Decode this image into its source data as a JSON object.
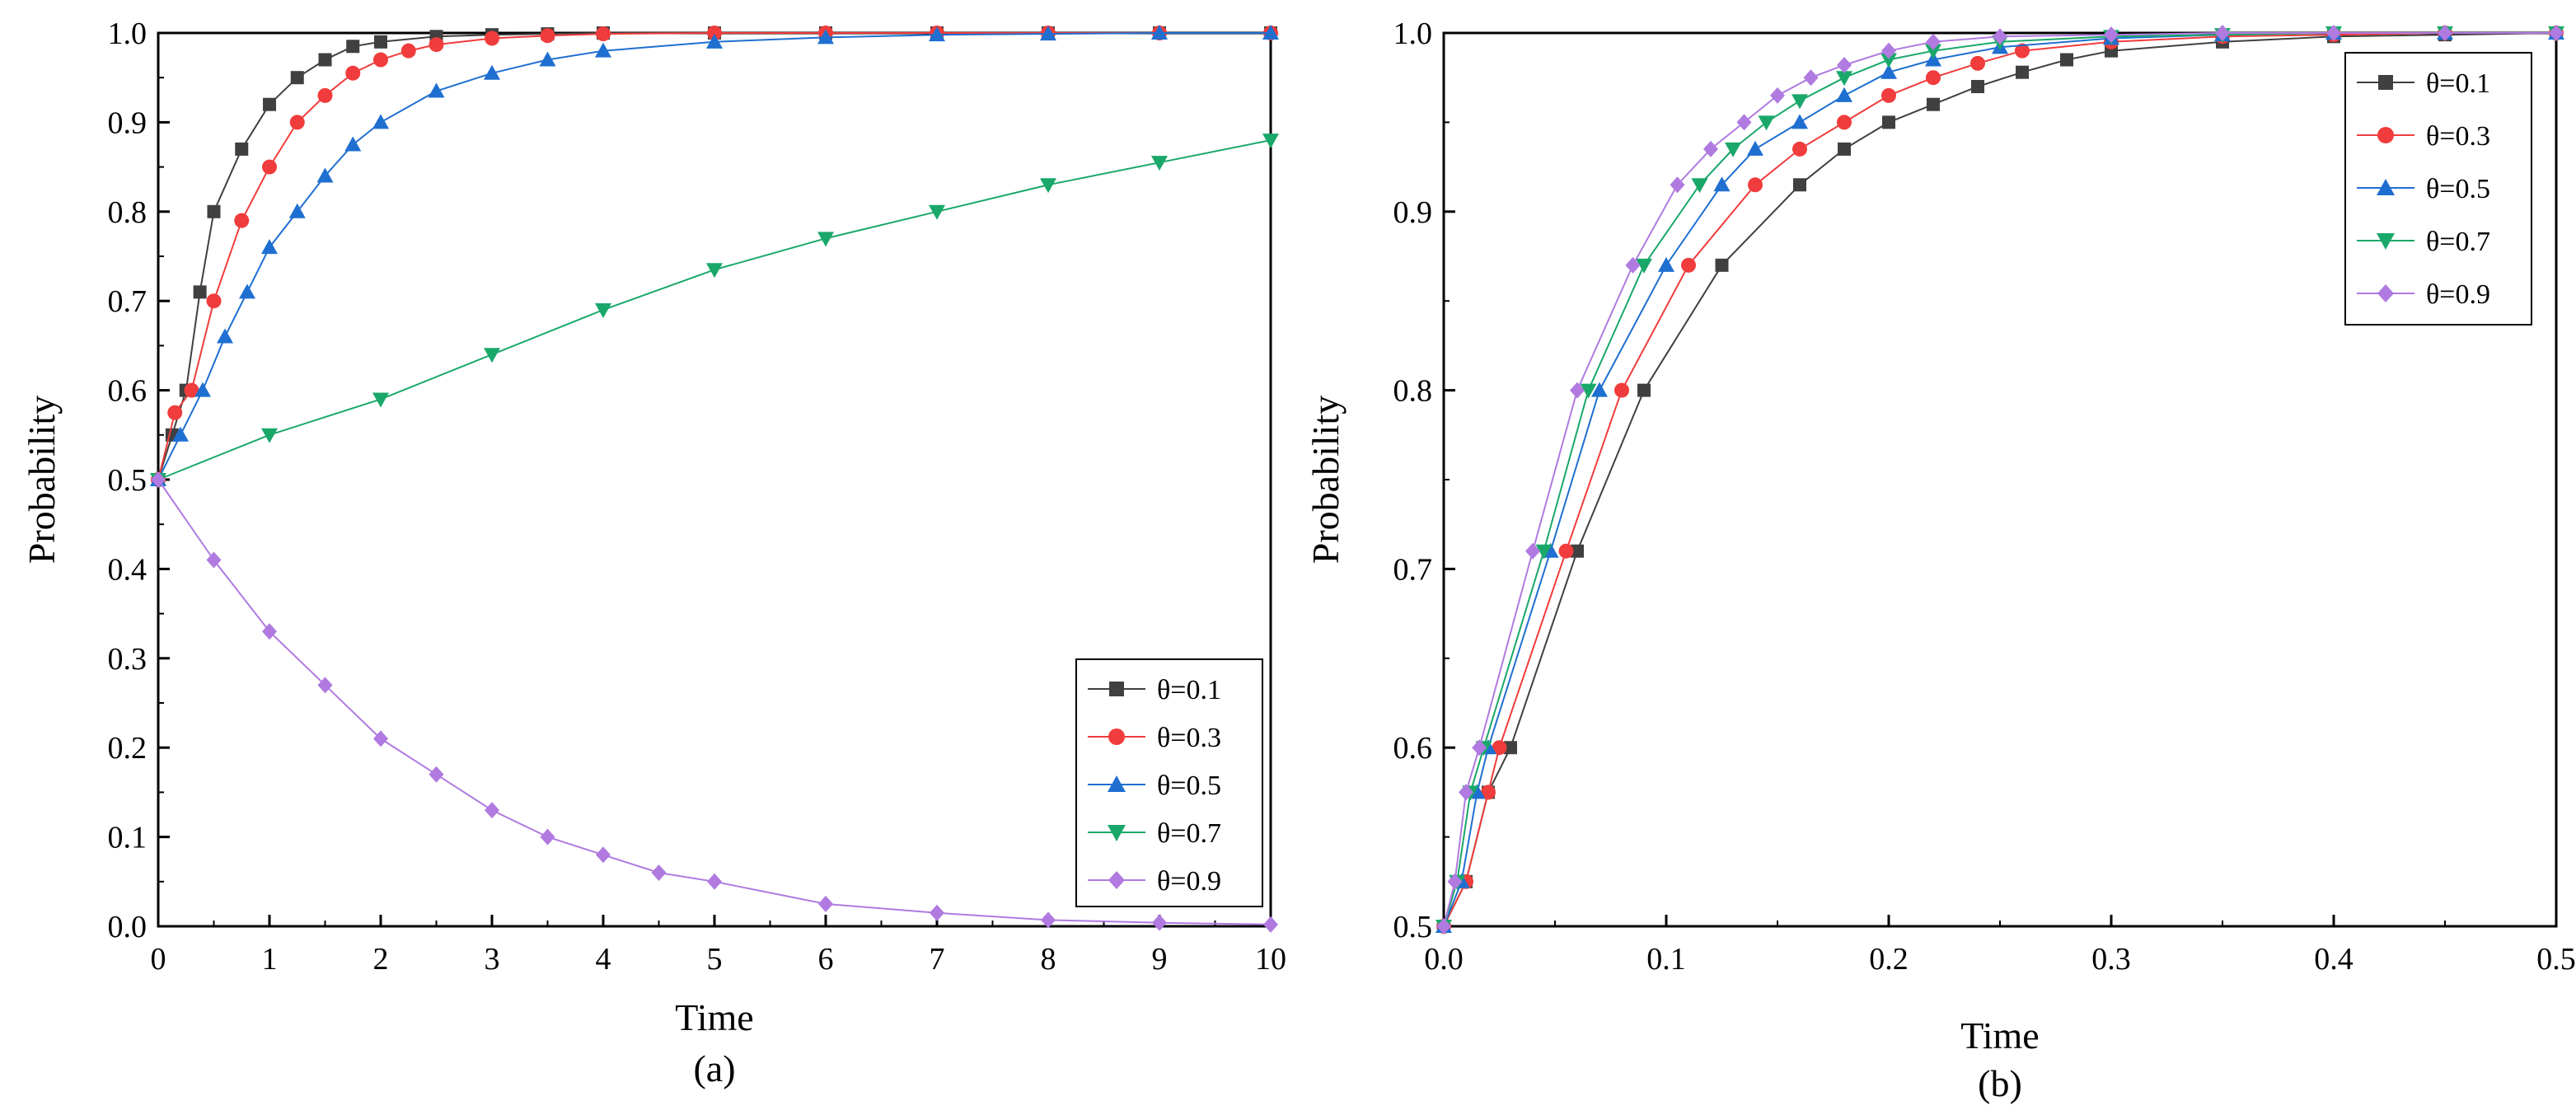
{
  "chart_data": [
    {
      "type": "line",
      "panel_label": "(a)",
      "xlabel": "Time",
      "ylabel": "Probability",
      "xlim": [
        0,
        10
      ],
      "ylim": [
        0,
        1.0
      ],
      "x_ticks": [
        0,
        1,
        2,
        3,
        4,
        5,
        6,
        7,
        8,
        9,
        10
      ],
      "x_tick_labels": [
        "0",
        "1",
        "2",
        "3",
        "4",
        "5",
        "6",
        "7",
        "8",
        "9",
        "10"
      ],
      "y_ticks": [
        0,
        0.1,
        0.2,
        0.3,
        0.4,
        0.5,
        0.6,
        0.7,
        0.8,
        0.9,
        1.0
      ],
      "y_tick_labels": [
        "0.0",
        "0.1",
        "0.2",
        "0.3",
        "0.4",
        "0.5",
        "0.6",
        "0.7",
        "0.8",
        "0.9",
        "1.0"
      ],
      "legend_position": "bottom-right",
      "series": [
        {
          "name": "θ=0.1",
          "color": "#404040",
          "marker": "square",
          "x": [
            0,
            0.125,
            0.25,
            0.375,
            0.5,
            0.75,
            1.0,
            1.25,
            1.5,
            1.75,
            2,
            2.5,
            3,
            3.5,
            4,
            5,
            6,
            7,
            8,
            9,
            10
          ],
          "y": [
            0.5,
            0.55,
            0.6,
            0.71,
            0.8,
            0.87,
            0.92,
            0.95,
            0.97,
            0.985,
            0.99,
            0.996,
            0.998,
            0.999,
            1.0,
            1.0,
            1.0,
            1.0,
            1.0,
            1.0,
            1.0
          ]
        },
        {
          "name": "θ=0.3",
          "color": "#f03c3c",
          "marker": "circle",
          "x": [
            0,
            0.15,
            0.3,
            0.5,
            0.75,
            1.0,
            1.25,
            1.5,
            1.75,
            2,
            2.25,
            2.5,
            3,
            3.5,
            4,
            5,
            6,
            7,
            8,
            9,
            10
          ],
          "y": [
            0.5,
            0.575,
            0.6,
            0.7,
            0.79,
            0.85,
            0.9,
            0.93,
            0.955,
            0.97,
            0.98,
            0.987,
            0.994,
            0.997,
            0.999,
            1.0,
            1.0,
            1.0,
            1.0,
            1.0,
            1.0
          ]
        },
        {
          "name": "θ=0.5",
          "color": "#1f6fd1",
          "marker": "triangle-up",
          "x": [
            0,
            0.2,
            0.4,
            0.6,
            0.8,
            1.0,
            1.25,
            1.5,
            1.75,
            2,
            2.5,
            3,
            3.5,
            4,
            5,
            6,
            7,
            8,
            9,
            10
          ],
          "y": [
            0.5,
            0.55,
            0.6,
            0.66,
            0.71,
            0.76,
            0.8,
            0.84,
            0.875,
            0.9,
            0.935,
            0.955,
            0.97,
            0.98,
            0.99,
            0.995,
            0.998,
            0.999,
            1.0,
            1.0
          ]
        },
        {
          "name": "θ=0.7",
          "color": "#1aa86a",
          "marker": "triangle-down",
          "x": [
            0,
            1,
            2,
            3,
            4,
            5,
            6,
            7,
            8,
            9,
            10
          ],
          "y": [
            0.5,
            0.55,
            0.59,
            0.64,
            0.69,
            0.735,
            0.77,
            0.8,
            0.83,
            0.855,
            0.88
          ]
        },
        {
          "name": "θ=0.9",
          "color": "#b07ae0",
          "marker": "diamond",
          "x": [
            0,
            0.5,
            1,
            1.5,
            2,
            2.5,
            3,
            3.5,
            4,
            4.5,
            5,
            6,
            7,
            8,
            9,
            10
          ],
          "y": [
            0.5,
            0.41,
            0.33,
            0.27,
            0.21,
            0.17,
            0.13,
            0.1,
            0.08,
            0.06,
            0.05,
            0.025,
            0.015,
            0.007,
            0.004,
            0.002
          ]
        }
      ]
    },
    {
      "type": "line",
      "panel_label": "(b)",
      "xlabel": "Time",
      "ylabel": "Probability",
      "xlim": [
        0,
        0.5
      ],
      "ylim": [
        0.5,
        1.0
      ],
      "x_ticks": [
        0,
        0.1,
        0.2,
        0.3,
        0.4,
        0.5
      ],
      "x_tick_labels": [
        "0.0",
        "0.1",
        "0.2",
        "0.3",
        "0.4",
        "0.5"
      ],
      "y_ticks": [
        0.5,
        0.6,
        0.7,
        0.8,
        0.9,
        1.0
      ],
      "y_tick_labels": [
        "0.5",
        "0.6",
        "0.7",
        "0.8",
        "0.9",
        "1.0"
      ],
      "legend_position": "top-right",
      "series": [
        {
          "name": "θ=0.1",
          "color": "#404040",
          "marker": "square",
          "x": [
            0,
            0.01,
            0.02,
            0.03,
            0.06,
            0.09,
            0.125,
            0.16,
            0.18,
            0.2,
            0.22,
            0.24,
            0.26,
            0.28,
            0.3,
            0.35,
            0.4,
            0.45,
            0.5
          ],
          "y": [
            0.5,
            0.525,
            0.575,
            0.6,
            0.71,
            0.8,
            0.87,
            0.915,
            0.935,
            0.95,
            0.96,
            0.97,
            0.978,
            0.985,
            0.99,
            0.995,
            0.998,
            0.999,
            1.0
          ]
        },
        {
          "name": "θ=0.3",
          "color": "#f03c3c",
          "marker": "circle",
          "x": [
            0,
            0.01,
            0.02,
            0.025,
            0.055,
            0.08,
            0.11,
            0.14,
            0.16,
            0.18,
            0.2,
            0.22,
            0.24,
            0.26,
            0.3,
            0.35,
            0.4,
            0.45,
            0.5
          ],
          "y": [
            0.5,
            0.525,
            0.575,
            0.6,
            0.71,
            0.8,
            0.87,
            0.915,
            0.935,
            0.95,
            0.965,
            0.975,
            0.983,
            0.99,
            0.995,
            0.998,
            0.999,
            1.0,
            1.0
          ]
        },
        {
          "name": "θ=0.5",
          "color": "#1f6fd1",
          "marker": "triangle-up",
          "x": [
            0,
            0.008,
            0.015,
            0.02,
            0.048,
            0.07,
            0.1,
            0.125,
            0.14,
            0.16,
            0.18,
            0.2,
            0.22,
            0.25,
            0.3,
            0.35,
            0.4,
            0.45,
            0.5
          ],
          "y": [
            0.5,
            0.525,
            0.575,
            0.6,
            0.71,
            0.8,
            0.87,
            0.915,
            0.935,
            0.95,
            0.965,
            0.978,
            0.985,
            0.992,
            0.997,
            0.999,
            1.0,
            1.0,
            1.0
          ]
        },
        {
          "name": "θ=0.7",
          "color": "#1aa86a",
          "marker": "triangle-down",
          "x": [
            0,
            0.006,
            0.012,
            0.018,
            0.045,
            0.065,
            0.09,
            0.115,
            0.13,
            0.145,
            0.16,
            0.18,
            0.2,
            0.22,
            0.25,
            0.3,
            0.35,
            0.4,
            0.45,
            0.5
          ],
          "y": [
            0.5,
            0.525,
            0.575,
            0.6,
            0.71,
            0.8,
            0.87,
            0.915,
            0.935,
            0.95,
            0.962,
            0.975,
            0.985,
            0.99,
            0.995,
            0.998,
            0.999,
            1.0,
            1.0,
            1.0
          ]
        },
        {
          "name": "θ=0.9",
          "color": "#b07ae0",
          "marker": "diamond",
          "x": [
            0,
            0.005,
            0.01,
            0.016,
            0.04,
            0.06,
            0.085,
            0.105,
            0.12,
            0.135,
            0.15,
            0.165,
            0.18,
            0.2,
            0.22,
            0.25,
            0.3,
            0.35,
            0.4,
            0.45,
            0.5
          ],
          "y": [
            0.5,
            0.525,
            0.575,
            0.6,
            0.71,
            0.8,
            0.87,
            0.915,
            0.935,
            0.95,
            0.965,
            0.975,
            0.982,
            0.99,
            0.995,
            0.998,
            0.999,
            1.0,
            1.0,
            1.0,
            1.0
          ]
        }
      ]
    }
  ]
}
